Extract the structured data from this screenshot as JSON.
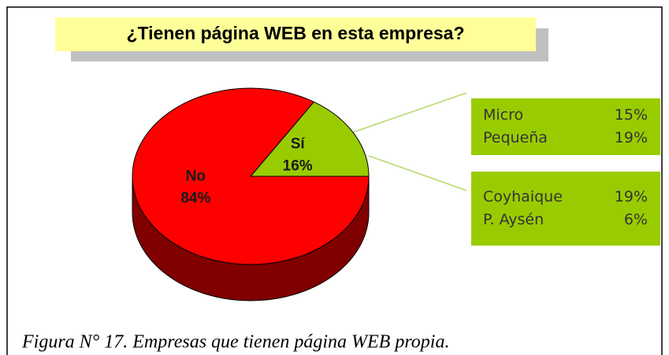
{
  "chart_data": {
    "type": "pie",
    "title": "¿Tienen página WEB en esta empresa?",
    "categories": [
      "Sí",
      "No"
    ],
    "values": [
      16,
      84
    ],
    "value_labels": [
      "16%",
      "84%"
    ],
    "colors": [
      "#99cc00",
      "#ff0000"
    ],
    "side_colors": [
      "#4d6600",
      "#800000"
    ],
    "breakdowns": [
      {
        "rows": [
          {
            "label": "Micro",
            "value": 15,
            "value_label": "15%"
          },
          {
            "label": "Pequeña",
            "value": 19,
            "value_label": "19%"
          }
        ]
      },
      {
        "rows": [
          {
            "label": "Coyhaique",
            "value": 19,
            "value_label": "19%"
          },
          {
            "label": "P. Aysén",
            "value": 6,
            "value_label": "6%"
          }
        ]
      }
    ],
    "caption": "Figura N° 17. Empresas que tienen página WEB propia."
  }
}
